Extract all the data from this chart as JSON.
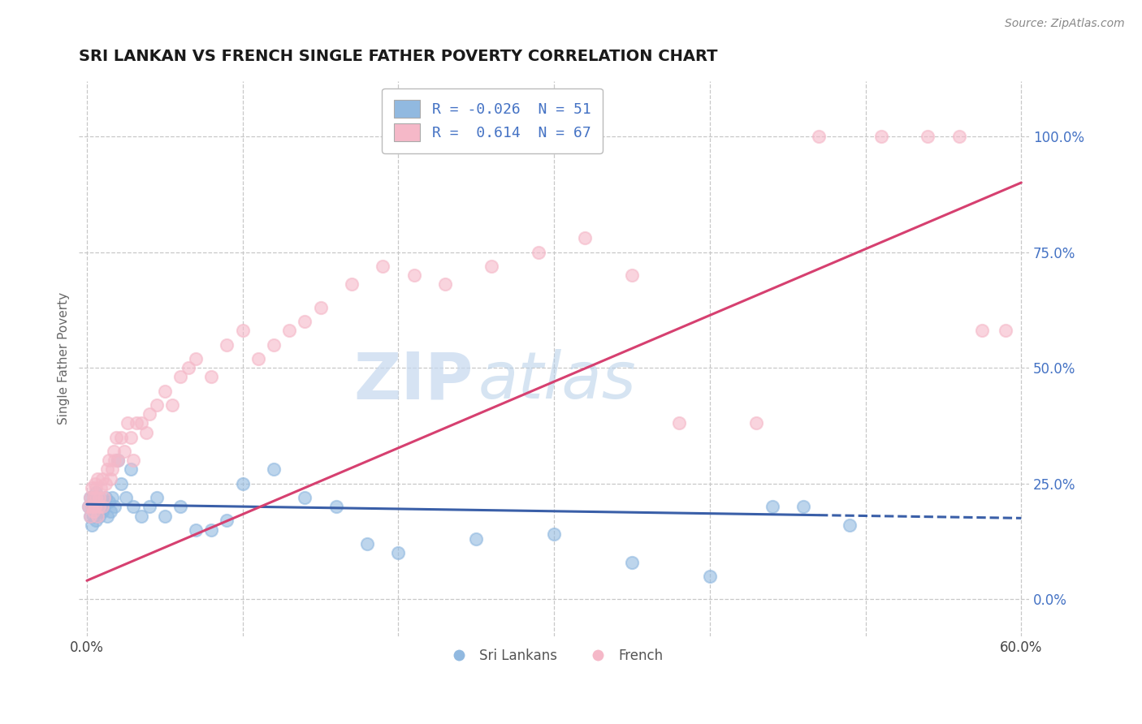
{
  "title": "SRI LANKAN VS FRENCH SINGLE FATHER POVERTY CORRELATION CHART",
  "source": "Source: ZipAtlas.com",
  "ylabel": "Single Father Poverty",
  "xlim": [
    -0.005,
    0.605
  ],
  "ylim": [
    -0.08,
    1.12
  ],
  "xticks": [
    0.0,
    0.1,
    0.2,
    0.3,
    0.4,
    0.5,
    0.6
  ],
  "xticklabels": [
    "0.0%",
    "",
    "",
    "",
    "",
    "",
    "60.0%"
  ],
  "yticks_right": [
    0.0,
    0.25,
    0.5,
    0.75,
    1.0
  ],
  "yticklabels_right": [
    "0.0%",
    "25.0%",
    "50.0%",
    "75.0%",
    "100.0%"
  ],
  "sri_lankans_color": "#91b9e0",
  "french_color": "#f5b8c8",
  "sri_lankans_line_color": "#3a5fa8",
  "french_line_color": "#d64070",
  "watermark_zip": "ZIP",
  "watermark_atlas": "atlas",
  "legend_R_sri": "-0.026",
  "legend_N_sri": "51",
  "legend_R_french": "0.614",
  "legend_N_french": "67",
  "sri_lankans_label": "Sri Lankans",
  "french_label": "French",
  "background_color": "#ffffff",
  "grid_color": "#c8c8c8",
  "sri_x": [
    0.001,
    0.002,
    0.002,
    0.003,
    0.003,
    0.004,
    0.004,
    0.005,
    0.005,
    0.006,
    0.006,
    0.007,
    0.007,
    0.008,
    0.008,
    0.009,
    0.01,
    0.01,
    0.011,
    0.012,
    0.013,
    0.014,
    0.015,
    0.016,
    0.018,
    0.02,
    0.022,
    0.025,
    0.028,
    0.03,
    0.035,
    0.04,
    0.045,
    0.05,
    0.06,
    0.07,
    0.08,
    0.09,
    0.1,
    0.12,
    0.14,
    0.16,
    0.18,
    0.2,
    0.25,
    0.3,
    0.35,
    0.4,
    0.44,
    0.46,
    0.49
  ],
  "sri_y": [
    0.2,
    0.18,
    0.22,
    0.16,
    0.2,
    0.18,
    0.22,
    0.19,
    0.21,
    0.17,
    0.23,
    0.19,
    0.21,
    0.18,
    0.22,
    0.2,
    0.19,
    0.21,
    0.2,
    0.22,
    0.18,
    0.21,
    0.19,
    0.22,
    0.2,
    0.3,
    0.25,
    0.22,
    0.28,
    0.2,
    0.18,
    0.2,
    0.22,
    0.18,
    0.2,
    0.15,
    0.15,
    0.17,
    0.25,
    0.28,
    0.22,
    0.2,
    0.12,
    0.1,
    0.13,
    0.14,
    0.08,
    0.05,
    0.2,
    0.2,
    0.16
  ],
  "french_x": [
    0.001,
    0.002,
    0.002,
    0.003,
    0.003,
    0.004,
    0.004,
    0.005,
    0.005,
    0.006,
    0.006,
    0.007,
    0.007,
    0.008,
    0.008,
    0.009,
    0.01,
    0.01,
    0.011,
    0.012,
    0.013,
    0.014,
    0.015,
    0.016,
    0.017,
    0.018,
    0.019,
    0.02,
    0.022,
    0.024,
    0.026,
    0.028,
    0.03,
    0.032,
    0.035,
    0.038,
    0.04,
    0.045,
    0.05,
    0.055,
    0.06,
    0.065,
    0.07,
    0.08,
    0.09,
    0.1,
    0.11,
    0.12,
    0.13,
    0.14,
    0.15,
    0.17,
    0.19,
    0.21,
    0.23,
    0.26,
    0.29,
    0.32,
    0.35,
    0.38,
    0.43,
    0.47,
    0.51,
    0.54,
    0.56,
    0.575,
    0.59
  ],
  "french_y": [
    0.2,
    0.22,
    0.18,
    0.2,
    0.24,
    0.19,
    0.22,
    0.25,
    0.2,
    0.22,
    0.24,
    0.18,
    0.26,
    0.2,
    0.22,
    0.24,
    0.2,
    0.26,
    0.22,
    0.25,
    0.28,
    0.3,
    0.26,
    0.28,
    0.32,
    0.3,
    0.35,
    0.3,
    0.35,
    0.32,
    0.38,
    0.35,
    0.3,
    0.38,
    0.38,
    0.36,
    0.4,
    0.42,
    0.45,
    0.42,
    0.48,
    0.5,
    0.52,
    0.48,
    0.55,
    0.58,
    0.52,
    0.55,
    0.58,
    0.6,
    0.63,
    0.68,
    0.72,
    0.7,
    0.68,
    0.72,
    0.75,
    0.78,
    0.7,
    0.38,
    0.38,
    1.0,
    1.0,
    1.0,
    1.0,
    0.58,
    0.58
  ],
  "sri_trend_x": [
    0.0,
    0.6
  ],
  "sri_trend_y": [
    0.205,
    0.175
  ],
  "french_trend_x": [
    0.0,
    0.6
  ],
  "french_trend_y": [
    0.04,
    0.9
  ]
}
